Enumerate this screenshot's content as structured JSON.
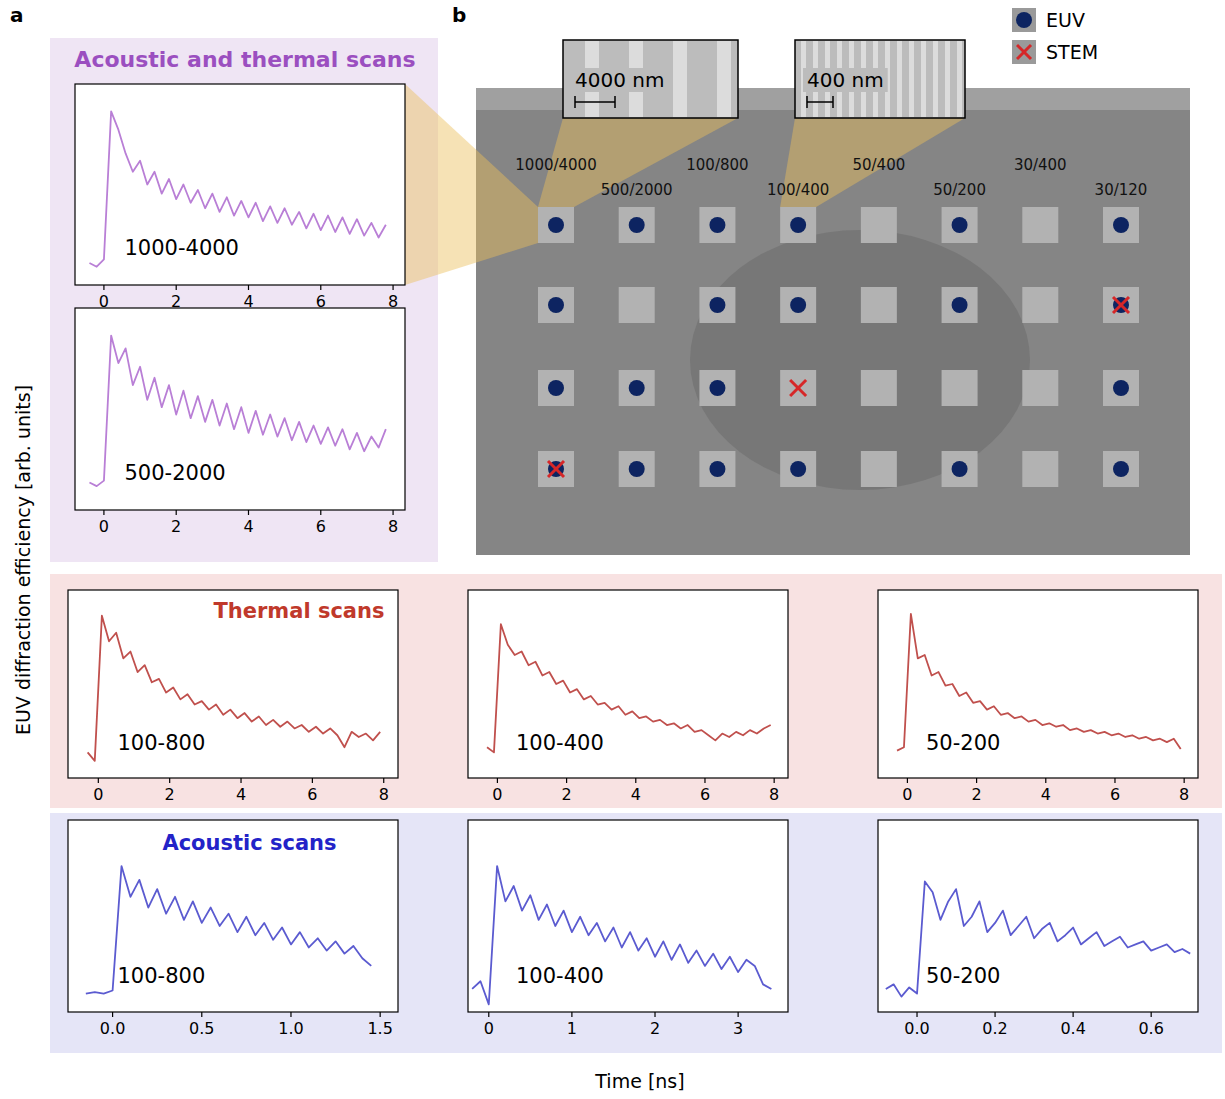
{
  "figure": {
    "panel_labels": [
      "a",
      "b"
    ],
    "y_label": "EUV diffraction efficiency [arb. units]",
    "x_label": "Time [ns]",
    "group_titles": [
      "Acoustic and thermal scans",
      "Thermal scans",
      "Acoustic scans"
    ],
    "legend": [
      {
        "name": "EUV",
        "color": "#0d2461",
        "marker": "circle"
      },
      {
        "name": "STEM",
        "color": "#d62728",
        "marker": "x"
      }
    ],
    "insets": [
      {
        "scale_label": "4000 nm"
      },
      {
        "scale_label": "400 nm"
      }
    ],
    "sample_labels": [
      "1000/4000",
      "500/2000",
      "100/800",
      "100/400",
      "50/400",
      "50/200",
      "30/400",
      "30/120"
    ],
    "euv_sites": [
      [
        0,
        0
      ],
      [
        0,
        1
      ],
      [
        0,
        2
      ],
      [
        0,
        3
      ],
      [
        0,
        5
      ],
      [
        0,
        7
      ],
      [
        1,
        0
      ],
      [
        1,
        2
      ],
      [
        1,
        3
      ],
      [
        1,
        5
      ],
      [
        1,
        7
      ],
      [
        2,
        0
      ],
      [
        2,
        1
      ],
      [
        2,
        2
      ],
      [
        2,
        7
      ],
      [
        3,
        0
      ],
      [
        3,
        1
      ],
      [
        3,
        2
      ],
      [
        3,
        3
      ],
      [
        3,
        5
      ],
      [
        3,
        7
      ]
    ],
    "stem_sites": [
      [
        1,
        7
      ],
      [
        2,
        3
      ],
      [
        3,
        0
      ]
    ]
  },
  "chart_data": [
    {
      "type": "line",
      "title": "1000-4000",
      "tick_labels": "x",
      "grid": false,
      "x": [
        -0.4,
        -0.2,
        0,
        0.2,
        0.4,
        0.6,
        0.8,
        1,
        1.2,
        1.4,
        1.6,
        1.8,
        2,
        2.2,
        2.4,
        2.6,
        2.8,
        3,
        3.2,
        3.4,
        3.6,
        3.8,
        4,
        4.2,
        4.4,
        4.6,
        4.8,
        5,
        5.2,
        5.4,
        5.6,
        5.8,
        6,
        6.2,
        6.4,
        6.6,
        6.8,
        7,
        7.2,
        7.4,
        7.6,
        7.8
      ],
      "series": [
        {
          "color": "#b97fd6",
          "values": [
            0.12,
            0.1,
            0.14,
            0.95,
            0.85,
            0.72,
            0.62,
            0.68,
            0.55,
            0.62,
            0.5,
            0.58,
            0.47,
            0.55,
            0.45,
            0.52,
            0.42,
            0.5,
            0.4,
            0.48,
            0.38,
            0.46,
            0.37,
            0.45,
            0.35,
            0.43,
            0.34,
            0.42,
            0.33,
            0.4,
            0.31,
            0.39,
            0.3,
            0.38,
            0.29,
            0.37,
            0.28,
            0.36,
            0.27,
            0.34,
            0.26,
            0.33
          ]
        }
      ],
      "xlim": [
        -0.8,
        8.33
      ],
      "ylim": [
        0,
        1.1
      ],
      "xticks": [
        0,
        2,
        4,
        6,
        8
      ]
    },
    {
      "type": "line",
      "title": "500-2000",
      "tick_labels": "x",
      "grid": false,
      "x": [
        -0.4,
        -0.2,
        0,
        0.2,
        0.4,
        0.6,
        0.8,
        1,
        1.2,
        1.4,
        1.6,
        1.8,
        2,
        2.2,
        2.4,
        2.6,
        2.8,
        3,
        3.2,
        3.4,
        3.6,
        3.8,
        4,
        4.2,
        4.4,
        4.6,
        4.8,
        5,
        5.2,
        5.4,
        5.6,
        5.8,
        6,
        6.2,
        6.4,
        6.6,
        6.8,
        7,
        7.2,
        7.4,
        7.6,
        7.8
      ],
      "series": [
        {
          "color": "#b97fd6",
          "values": [
            0.15,
            0.13,
            0.16,
            0.95,
            0.8,
            0.88,
            0.68,
            0.78,
            0.6,
            0.72,
            0.56,
            0.68,
            0.52,
            0.65,
            0.5,
            0.62,
            0.48,
            0.6,
            0.46,
            0.58,
            0.44,
            0.56,
            0.42,
            0.54,
            0.41,
            0.52,
            0.4,
            0.5,
            0.38,
            0.48,
            0.37,
            0.46,
            0.36,
            0.45,
            0.35,
            0.44,
            0.33,
            0.42,
            0.32,
            0.4,
            0.34,
            0.44
          ]
        }
      ],
      "xlim": [
        -0.8,
        8.33
      ],
      "ylim": [
        0,
        1.1
      ],
      "xticks": [
        0,
        2,
        4,
        6,
        8
      ]
    },
    {
      "type": "line",
      "title": "100-800",
      "tick_labels": "x",
      "grid": false,
      "x": [
        -0.3,
        -0.1,
        0.1,
        0.3,
        0.5,
        0.7,
        0.9,
        1.1,
        1.3,
        1.5,
        1.7,
        1.9,
        2.1,
        2.3,
        2.5,
        2.7,
        2.9,
        3.1,
        3.3,
        3.5,
        3.7,
        3.9,
        4.1,
        4.3,
        4.5,
        4.7,
        4.9,
        5.1,
        5.3,
        5.5,
        5.7,
        5.9,
        6.1,
        6.3,
        6.5,
        6.7,
        6.9,
        7.1,
        7.3,
        7.5,
        7.7,
        7.9
      ],
      "series": [
        {
          "color": "#c0504d",
          "values": [
            0.15,
            0.1,
            0.95,
            0.8,
            0.85,
            0.7,
            0.74,
            0.62,
            0.66,
            0.56,
            0.58,
            0.5,
            0.53,
            0.46,
            0.49,
            0.43,
            0.45,
            0.4,
            0.43,
            0.37,
            0.4,
            0.35,
            0.38,
            0.33,
            0.36,
            0.31,
            0.34,
            0.3,
            0.33,
            0.29,
            0.31,
            0.27,
            0.3,
            0.26,
            0.29,
            0.25,
            0.18,
            0.27,
            0.24,
            0.26,
            0.22,
            0.27
          ]
        }
      ],
      "xlim": [
        -0.85,
        8.4
      ],
      "ylim": [
        0,
        1.1
      ],
      "xticks": [
        0,
        2,
        4,
        6,
        8
      ]
    },
    {
      "type": "line",
      "title": "100-400",
      "tick_labels": "x",
      "grid": false,
      "x": [
        -0.3,
        -0.1,
        0.1,
        0.3,
        0.5,
        0.7,
        0.9,
        1.1,
        1.3,
        1.5,
        1.7,
        1.9,
        2.1,
        2.3,
        2.5,
        2.7,
        2.9,
        3.1,
        3.3,
        3.5,
        3.7,
        3.9,
        4.1,
        4.3,
        4.5,
        4.7,
        4.9,
        5.1,
        5.3,
        5.5,
        5.7,
        5.9,
        6.1,
        6.3,
        6.5,
        6.7,
        6.9,
        7.1,
        7.3,
        7.5,
        7.7,
        7.9
      ],
      "series": [
        {
          "color": "#c0504d",
          "values": [
            0.18,
            0.15,
            0.9,
            0.78,
            0.72,
            0.74,
            0.66,
            0.68,
            0.6,
            0.62,
            0.55,
            0.57,
            0.5,
            0.52,
            0.46,
            0.48,
            0.43,
            0.44,
            0.4,
            0.42,
            0.37,
            0.39,
            0.35,
            0.36,
            0.33,
            0.34,
            0.31,
            0.32,
            0.29,
            0.31,
            0.27,
            0.28,
            0.25,
            0.22,
            0.26,
            0.24,
            0.27,
            0.25,
            0.28,
            0.26,
            0.29,
            0.31
          ]
        }
      ],
      "xlim": [
        -0.85,
        8.4
      ],
      "ylim": [
        0,
        1.1
      ],
      "xticks": [
        0,
        2,
        4,
        6,
        8
      ]
    },
    {
      "type": "line",
      "title": "50-200",
      "tick_labels": "x",
      "grid": false,
      "x": [
        -0.3,
        -0.1,
        0.1,
        0.3,
        0.5,
        0.7,
        0.9,
        1.1,
        1.3,
        1.5,
        1.7,
        1.9,
        2.1,
        2.3,
        2.5,
        2.7,
        2.9,
        3.1,
        3.3,
        3.5,
        3.7,
        3.9,
        4.1,
        4.3,
        4.5,
        4.7,
        4.9,
        5.1,
        5.3,
        5.5,
        5.7,
        5.9,
        6.1,
        6.3,
        6.5,
        6.7,
        6.9,
        7.1,
        7.3,
        7.5,
        7.7,
        7.9
      ],
      "series": [
        {
          "color": "#c0504d",
          "values": [
            0.16,
            0.18,
            0.96,
            0.7,
            0.72,
            0.6,
            0.62,
            0.54,
            0.55,
            0.48,
            0.5,
            0.44,
            0.45,
            0.4,
            0.42,
            0.37,
            0.38,
            0.35,
            0.36,
            0.33,
            0.34,
            0.31,
            0.32,
            0.3,
            0.31,
            0.28,
            0.29,
            0.27,
            0.28,
            0.26,
            0.27,
            0.25,
            0.26,
            0.24,
            0.25,
            0.23,
            0.24,
            0.22,
            0.23,
            0.21,
            0.23,
            0.17
          ]
        }
      ],
      "xlim": [
        -0.85,
        8.4
      ],
      "ylim": [
        0,
        1.1
      ],
      "xticks": [
        0,
        2,
        4,
        6,
        8
      ]
    },
    {
      "type": "line",
      "title": "100-800",
      "tick_labels": "x",
      "grid": false,
      "x": [
        -0.15,
        -0.1,
        -0.05,
        0,
        0.05,
        0.1,
        0.15,
        0.2,
        0.25,
        0.3,
        0.35,
        0.4,
        0.45,
        0.5,
        0.55,
        0.6,
        0.65,
        0.7,
        0.75,
        0.8,
        0.85,
        0.9,
        0.95,
        1,
        1.05,
        1.1,
        1.15,
        1.2,
        1.25,
        1.3,
        1.35,
        1.4,
        1.45
      ],
      "series": [
        {
          "color": "#5b5bd0",
          "values": [
            0.12,
            0.13,
            0.12,
            0.14,
            0.95,
            0.75,
            0.86,
            0.68,
            0.8,
            0.64,
            0.75,
            0.6,
            0.72,
            0.58,
            0.68,
            0.56,
            0.64,
            0.52,
            0.62,
            0.5,
            0.58,
            0.47,
            0.55,
            0.44,
            0.52,
            0.42,
            0.48,
            0.4,
            0.46,
            0.38,
            0.43,
            0.35,
            0.3
          ]
        }
      ],
      "xlim": [
        -0.25,
        1.6
      ],
      "ylim": [
        0,
        1.25
      ],
      "xticks": [
        {
          "value": 0,
          "label": "0.0"
        },
        0.5,
        {
          "value": 1,
          "label": "1.0"
        },
        1.5
      ]
    },
    {
      "type": "line",
      "title": "100-400",
      "tick_labels": "x",
      "grid": false,
      "x": [
        -0.2,
        -0.1,
        0,
        0.1,
        0.2,
        0.3,
        0.4,
        0.5,
        0.6,
        0.7,
        0.8,
        0.9,
        1,
        1.1,
        1.2,
        1.3,
        1.4,
        1.5,
        1.6,
        1.7,
        1.8,
        1.9,
        2,
        2.1,
        2.2,
        2.3,
        2.4,
        2.5,
        2.6,
        2.7,
        2.8,
        2.9,
        3,
        3.1,
        3.2,
        3.3,
        3.4
      ],
      "series": [
        {
          "color": "#5b5bd0",
          "values": [
            0.15,
            0.2,
            0.05,
            0.95,
            0.72,
            0.82,
            0.66,
            0.76,
            0.6,
            0.7,
            0.56,
            0.66,
            0.52,
            0.62,
            0.5,
            0.58,
            0.46,
            0.55,
            0.42,
            0.52,
            0.4,
            0.48,
            0.36,
            0.46,
            0.34,
            0.44,
            0.32,
            0.4,
            0.3,
            0.38,
            0.28,
            0.36,
            0.26,
            0.34,
            0.3,
            0.18,
            0.15
          ]
        }
      ],
      "xlim": [
        -0.25,
        3.6
      ],
      "ylim": [
        0,
        1.25
      ],
      "xticks": [
        0,
        1,
        2,
        3
      ]
    },
    {
      "type": "line",
      "title": "50-200",
      "tick_labels": "x",
      "grid": false,
      "x": [
        -0.08,
        -0.06,
        -0.04,
        -0.02,
        0,
        0.02,
        0.04,
        0.06,
        0.08,
        0.1,
        0.12,
        0.14,
        0.16,
        0.18,
        0.2,
        0.22,
        0.24,
        0.26,
        0.28,
        0.3,
        0.32,
        0.34,
        0.36,
        0.38,
        0.4,
        0.42,
        0.44,
        0.46,
        0.48,
        0.5,
        0.52,
        0.54,
        0.56,
        0.58,
        0.6,
        0.62,
        0.64,
        0.66,
        0.68,
        0.7
      ],
      "series": [
        {
          "color": "#5b5bd0",
          "values": [
            0.15,
            0.18,
            0.1,
            0.16,
            0.12,
            0.85,
            0.78,
            0.6,
            0.72,
            0.8,
            0.56,
            0.62,
            0.72,
            0.52,
            0.58,
            0.66,
            0.5,
            0.56,
            0.62,
            0.48,
            0.54,
            0.58,
            0.46,
            0.5,
            0.55,
            0.44,
            0.48,
            0.52,
            0.43,
            0.46,
            0.49,
            0.42,
            0.44,
            0.46,
            0.4,
            0.42,
            0.44,
            0.39,
            0.41,
            0.38
          ]
        }
      ],
      "xlim": [
        -0.1,
        0.72
      ],
      "ylim": [
        0,
        1.25
      ],
      "xticks": [
        {
          "value": 0,
          "label": "0.0"
        },
        0.2,
        0.4,
        0.6
      ]
    }
  ]
}
